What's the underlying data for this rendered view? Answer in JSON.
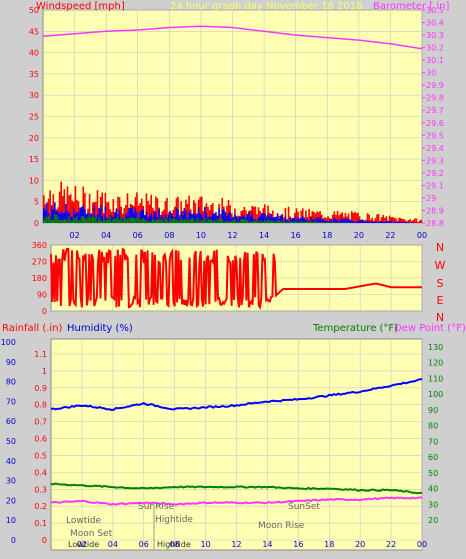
{
  "chart_data": [
    {
      "type": "line",
      "title": "24 hour graph day   November 18 2018",
      "left_axis_label": "Windspeed [mph]",
      "right_axis_label": "Barometer [ in]",
      "left_ylim": [
        0,
        50
      ],
      "right_ylim": [
        28.8,
        30.5
      ],
      "left_ticks": [
        "0",
        "5",
        "10",
        "15",
        "20",
        "25",
        "30",
        "35",
        "40",
        "45",
        "50"
      ],
      "right_ticks": [
        "28.8",
        "28.9",
        "29",
        "29.1",
        "29.2",
        "29.3",
        "29.4",
        "29.5",
        "29.6",
        "29.7",
        "29.8",
        "29.9",
        "30",
        "30.1",
        "30.2",
        "30.3",
        "30.4",
        "30.5"
      ],
      "x_ticks": [
        "02",
        "04",
        "06",
        "08",
        "10",
        "12",
        "14",
        "16",
        "18",
        "20",
        "22",
        "00"
      ],
      "series": [
        {
          "name": "Barometer",
          "axis": "right",
          "color": "#ff33ff",
          "x": [
            0,
            2,
            4,
            6,
            8,
            10,
            12,
            14,
            16,
            18,
            20,
            22,
            24
          ],
          "y": [
            30.29,
            30.31,
            30.33,
            30.34,
            30.36,
            30.37,
            30.36,
            30.33,
            30.3,
            30.28,
            30.26,
            30.23,
            30.19
          ]
        },
        {
          "name": "Windspeed gust",
          "axis": "left",
          "color": "#ff0000",
          "x": [
            0,
            2,
            4,
            6,
            8,
            10,
            12,
            14,
            16,
            18,
            20,
            22,
            24
          ],
          "y": [
            6,
            5,
            4.5,
            4,
            3.5,
            3.8,
            3,
            2.5,
            2,
            1.8,
            1.5,
            1,
            0.5
          ]
        },
        {
          "name": "Windspeed avg",
          "axis": "left",
          "color": "#0000ff",
          "x": [
            0,
            2,
            4,
            6,
            8,
            10,
            12,
            14,
            16,
            18,
            20,
            22,
            24
          ],
          "y": [
            3,
            2.5,
            2.5,
            2,
            2,
            2.2,
            1.8,
            1.5,
            1,
            0.8,
            0.5,
            0.3,
            0
          ]
        },
        {
          "name": "Windspeed min",
          "axis": "left",
          "color": "#008000",
          "x": [
            0,
            2,
            4,
            6,
            8,
            10,
            12,
            14,
            16,
            18,
            20,
            22,
            24
          ],
          "y": [
            1.2,
            1,
            1,
            0.8,
            0.8,
            0.8,
            0.6,
            0.5,
            0.3,
            0.2,
            0,
            0,
            0
          ]
        }
      ]
    },
    {
      "type": "line",
      "left_ticks": [
        "0",
        "90",
        "180",
        "270",
        "360"
      ],
      "right_ticks": [
        "N",
        "W",
        "S",
        "E",
        "N"
      ],
      "left_ylim": [
        0,
        360
      ],
      "x_ticks": [
        "02",
        "04",
        "06",
        "08",
        "10",
        "12",
        "14",
        "16",
        "18",
        "20",
        "22",
        "00"
      ],
      "series": [
        {
          "name": "Wind direction",
          "color": "#ff0000",
          "x": [
            0,
            1,
            2,
            3,
            4,
            5,
            6,
            7,
            8,
            9,
            10,
            11,
            12,
            13,
            14,
            15,
            16,
            17,
            18,
            19,
            20,
            21,
            22,
            23,
            24
          ],
          "y": [
            300,
            280,
            310,
            300,
            320,
            300,
            60,
            290,
            60,
            300,
            60,
            280,
            50,
            250,
            40,
            120,
            120,
            120,
            120,
            120,
            135,
            150,
            130,
            130,
            130
          ]
        }
      ]
    },
    {
      "type": "line",
      "rainfall_label": "Rainfall (.in)",
      "humidity_label": "Humidity (%)",
      "temperature_label": "Temperature (°F)",
      "dewpoint_label": "Dew Point (°F)",
      "humidity_ticks": [
        "0",
        "10",
        "20",
        "30",
        "40",
        "50",
        "60",
        "70",
        "80",
        "90",
        "100"
      ],
      "rain_ticks": [
        "0",
        "0.1",
        "0.2",
        "0.3",
        "0.4",
        "0.5",
        "0.6",
        "0.7",
        "0.8",
        "0.9",
        "1",
        "1.1"
      ],
      "temp_ticks": [
        "20",
        "30",
        "40",
        "50",
        "60",
        "70",
        "80",
        "90",
        "100",
        "110",
        "120",
        "130"
      ],
      "x_ticks": [
        "02",
        "04",
        "06",
        "08",
        "10",
        "12",
        "14",
        "16",
        "18",
        "20",
        "22",
        "00"
      ],
      "series": [
        {
          "name": "Humidity",
          "axis": "humidity",
          "color": "#0000ff",
          "x": [
            0,
            2,
            4,
            6,
            8,
            10,
            12,
            14,
            16,
            18,
            20,
            22,
            24
          ],
          "y": [
            66,
            68,
            66,
            69,
            66,
            67,
            68,
            70,
            71,
            73,
            75,
            78,
            81
          ]
        },
        {
          "name": "Temperature",
          "axis": "temp",
          "color": "#008000",
          "x": [
            0,
            2,
            4,
            6,
            8,
            10,
            12,
            14,
            16,
            18,
            20,
            22,
            24
          ],
          "y": [
            43,
            42,
            41,
            40,
            41,
            41,
            41,
            41,
            40,
            40,
            39,
            39,
            37
          ]
        },
        {
          "name": "Dew Point",
          "axis": "temp",
          "color": "#ff33ff",
          "x": [
            0,
            2,
            4,
            6,
            8,
            10,
            12,
            14,
            16,
            18,
            20,
            22,
            24
          ],
          "y": [
            31,
            32,
            30,
            31,
            30,
            31,
            31,
            31,
            32,
            33,
            33,
            34,
            34
          ]
        }
      ],
      "annotations": [
        "Moon Set",
        "Lowtide",
        "SunRise",
        "Hightide",
        "SunSet",
        "Moon Rise",
        "Lowtide",
        "Hightide"
      ]
    }
  ]
}
